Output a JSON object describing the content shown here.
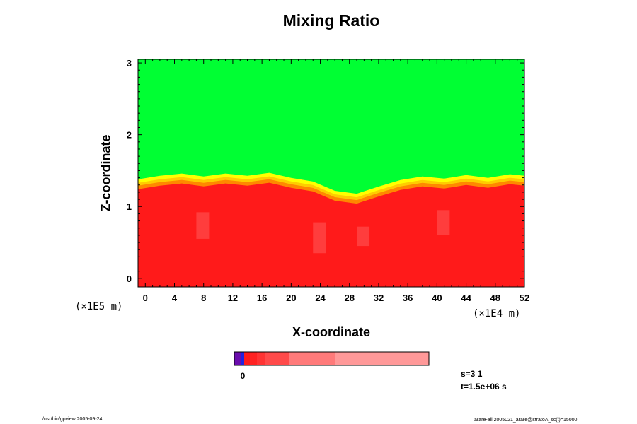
{
  "chart_data": {
    "type": "heatmap",
    "title": "Mixing Ratio",
    "xlabel": "X-coordinate",
    "ylabel": "Z-coordinate",
    "x_scale_label": "(×1E4 m)",
    "y_scale_label": "(×1E5 m)",
    "x_ticks": [
      "0",
      "4",
      "8",
      "12",
      "16",
      "20",
      "24",
      "28",
      "32",
      "36",
      "40",
      "44",
      "48",
      "52"
    ],
    "y_ticks": [
      "0",
      "1",
      "2",
      "3"
    ],
    "xlim": [
      -1,
      52
    ],
    "ylim": [
      -0.12,
      3.05
    ],
    "regions": [
      {
        "name": "upper",
        "color": "#00ff33",
        "z_range": [
          1.3,
          3.05
        ]
      },
      {
        "name": "lower",
        "color": "#ff1a1a",
        "z_range": [
          -0.12,
          1.2
        ]
      }
    ],
    "interface_profile": {
      "x": [
        -1,
        2,
        5,
        8,
        11,
        14,
        17,
        20,
        23,
        26,
        29,
        32,
        35,
        38,
        41,
        44,
        47,
        50,
        52
      ],
      "z": [
        1.28,
        1.33,
        1.36,
        1.32,
        1.36,
        1.33,
        1.37,
        1.3,
        1.25,
        1.12,
        1.08,
        1.18,
        1.27,
        1.32,
        1.29,
        1.34,
        1.3,
        1.35,
        1.33
      ]
    },
    "colorbar": {
      "tick_label": "0",
      "colors": [
        "#6a0dad",
        "#2222dd",
        "#ff1a1a",
        "#ff2222",
        "#ff3333",
        "#ff4a4a",
        "#ff7a7a",
        "#ff9999"
      ],
      "widths": [
        10,
        4,
        8,
        10,
        12,
        33,
        66,
        132
      ]
    }
  },
  "info": {
    "s_label": "s=3 1",
    "t_label": "t=1.5e+06 s"
  },
  "footer": {
    "left": "/usr/bin/gpview 2005-09-24",
    "right": "arare-all 2005021_arare@stratoA_sc(t)=15000"
  }
}
